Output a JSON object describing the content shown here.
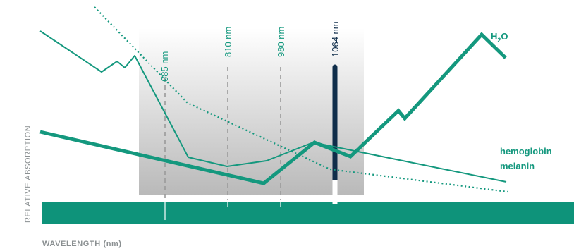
{
  "colors": {
    "teal": "#14987e",
    "teal_bar": "#0e937a",
    "navy": "#0f2d4a",
    "gray_text": "#8a8f91",
    "marker_gray": "#9a9a9a"
  },
  "chart_data": {
    "type": "line",
    "title": "",
    "xlabel": "WAVELENGTH (nm)",
    "ylabel": "RELATIVE ABSORPTION",
    "wavelength_markers": [
      {
        "label": "685 nm",
        "value": 685,
        "style": "dashed-gray",
        "label_color": "teal"
      },
      {
        "label": "810 nm",
        "value": 810,
        "style": "dashed-gray",
        "label_color": "teal"
      },
      {
        "label": "980 nm",
        "value": 980,
        "style": "dashed-gray",
        "label_color": "teal"
      },
      {
        "label": "1064 nm",
        "value": 1064,
        "style": "solid-navy",
        "label_color": "navy"
      }
    ],
    "series": [
      {
        "name": "H2O",
        "label": "H",
        "label_sub": "2",
        "label_tail": "O",
        "style": "thick"
      },
      {
        "name": "hemoglobin",
        "label": "hemoglobin",
        "style": "thin"
      },
      {
        "name": "melanin",
        "label": "melanin",
        "style": "dotted"
      }
    ]
  }
}
